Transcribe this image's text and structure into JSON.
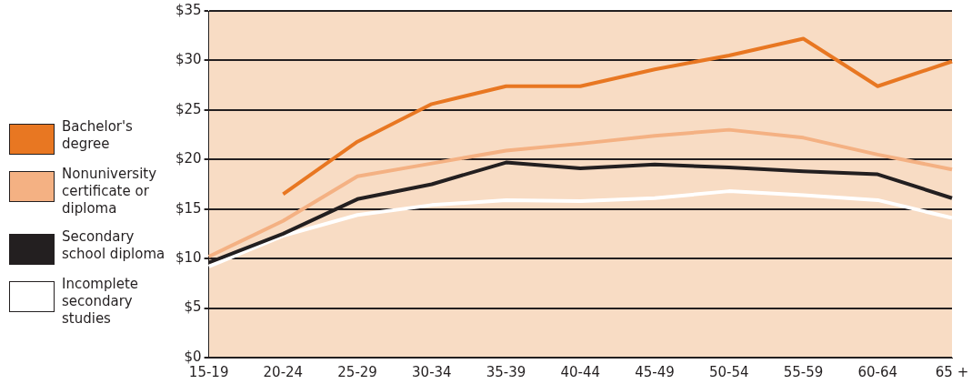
{
  "chart_data": {
    "type": "line",
    "categories": [
      "15-19",
      "20-24",
      "25-29",
      "30-34",
      "35-39",
      "40-44",
      "45-49",
      "50-54",
      "55-59",
      "60-64",
      "65 +"
    ],
    "series": [
      {
        "name": "Bachelor's degree",
        "color": "#e87722",
        "values": [
          null,
          16.5,
          21.8,
          25.6,
          27.4,
          27.4,
          29.1,
          30.5,
          32.2,
          27.4,
          29.9
        ]
      },
      {
        "name": "Nonuniversity certificate or diploma",
        "color": "#f4b183",
        "values": [
          10.2,
          13.8,
          18.3,
          19.6,
          20.9,
          21.6,
          22.4,
          23.0,
          22.2,
          20.5,
          19.0
        ]
      },
      {
        "name": "Secondary school diploma",
        "color": "#231f20",
        "values": [
          9.6,
          12.5,
          16.0,
          17.5,
          19.7,
          19.1,
          19.5,
          19.2,
          18.8,
          18.5,
          16.1
        ]
      },
      {
        "name": "Incomplete secondary studies",
        "color": "#ffffff",
        "values": [
          9.2,
          12.3,
          14.4,
          15.4,
          15.9,
          15.8,
          16.1,
          16.8,
          16.4,
          15.9,
          14.1
        ]
      }
    ],
    "ylim": [
      0,
      35
    ],
    "yticks": [
      {
        "value": 0,
        "label": "$0"
      },
      {
        "value": 5,
        "label": "$5"
      },
      {
        "value": 10,
        "label": "$10"
      },
      {
        "value": 15,
        "label": "$15"
      },
      {
        "value": 20,
        "label": "$20"
      },
      {
        "value": 25,
        "label": "$25"
      },
      {
        "value": 30,
        "label": "$30"
      },
      {
        "value": 35,
        "label": "$35"
      }
    ],
    "grid": "y",
    "legend": "left",
    "marker": "none",
    "line_style": "solid"
  }
}
